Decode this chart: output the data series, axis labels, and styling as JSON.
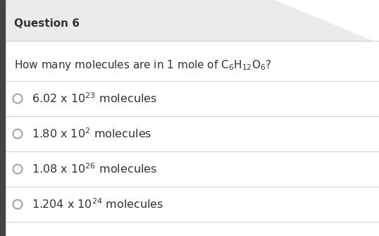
{
  "title": "Question 6",
  "question_parts": [
    {
      "text": "How many molecules are in 1 mole of C",
      "style": "normal"
    },
    {
      "text": "6",
      "style": "sub"
    },
    {
      "text": "H",
      "style": "normal"
    },
    {
      "text": "12",
      "style": "sub"
    },
    {
      "text": "O",
      "style": "normal"
    },
    {
      "text": "6",
      "style": "sub"
    },
    {
      "text": "?",
      "style": "normal"
    }
  ],
  "options": [
    {
      "label": "6.02 x 10",
      "exp": "23",
      "suffix": " molecules"
    },
    {
      "label": "1.80 x 10",
      "exp": "2",
      "suffix": " molecules"
    },
    {
      "label": "1.08 x 10",
      "exp": "26",
      "suffix": " molecules"
    },
    {
      "label": "1.204 x 10",
      "exp": "24",
      "suffix": " molecules"
    }
  ],
  "bg_color": "#ffffff",
  "header_bg": "#ebebeb",
  "title_color": "#333333",
  "question_color": "#333333",
  "option_color": "#333333",
  "divider_color": "#d0d0d0",
  "left_bar_color": "#444444",
  "circle_color": "#999999",
  "fig_width": 5.38,
  "fig_height": 3.35,
  "dpi": 100
}
